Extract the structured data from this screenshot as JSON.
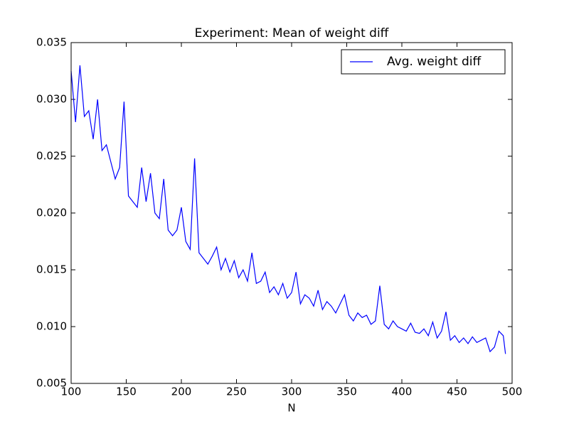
{
  "chart_data": {
    "type": "line",
    "title": "Experiment: Mean of weight diff",
    "x_label": "N",
    "xlim": [
      100,
      500
    ],
    "xticks": [
      100,
      150,
      200,
      250,
      300,
      350,
      400,
      450,
      500
    ],
    "ylim": [
      0.005,
      0.035
    ],
    "yticks": [
      0.005,
      {
        "value": 0.01,
        "label": "0.010"
      },
      0.015,
      {
        "value": 0.02,
        "label": "0.020"
      },
      0.025,
      {
        "value": 0.03,
        "label": "0.030"
      },
      0.035
    ],
    "legend": "upper right",
    "series": [
      {
        "name": "Avg. weight diff",
        "color": "#0000ff",
        "x": [
          100,
          104,
          108,
          112,
          116,
          120,
          124,
          128,
          132,
          136,
          140,
          144,
          148,
          152,
          156,
          160,
          164,
          168,
          172,
          176,
          180,
          184,
          188,
          192,
          196,
          200,
          204,
          208,
          212,
          216,
          220,
          224,
          228,
          232,
          236,
          240,
          244,
          248,
          252,
          256,
          260,
          264,
          268,
          272,
          276,
          280,
          284,
          288,
          292,
          296,
          300,
          304,
          308,
          312,
          316,
          320,
          324,
          328,
          332,
          336,
          340,
          344,
          348,
          352,
          356,
          360,
          364,
          368,
          372,
          376,
          380,
          384,
          388,
          392,
          396,
          400,
          404,
          408,
          412,
          416,
          420,
          424,
          428,
          432,
          436,
          440,
          444,
          448,
          452,
          456,
          460,
          464,
          468,
          472,
          476,
          480,
          484,
          488,
          492,
          494
        ],
        "values": [
          0.0325,
          0.028,
          0.033,
          0.0285,
          0.029,
          0.0265,
          0.03,
          0.0255,
          0.026,
          0.0245,
          0.023,
          0.024,
          0.0298,
          0.0215,
          0.021,
          0.0205,
          0.024,
          0.021,
          0.0235,
          0.02,
          0.0195,
          0.023,
          0.0185,
          0.018,
          0.0185,
          0.0205,
          0.0175,
          0.0168,
          0.0248,
          0.0165,
          0.016,
          0.0155,
          0.0162,
          0.017,
          0.015,
          0.016,
          0.0148,
          0.0158,
          0.0143,
          0.015,
          0.014,
          0.0165,
          0.0138,
          0.014,
          0.0148,
          0.013,
          0.0135,
          0.0128,
          0.0138,
          0.0125,
          0.013,
          0.0148,
          0.012,
          0.0128,
          0.0125,
          0.0118,
          0.0132,
          0.0115,
          0.0122,
          0.0118,
          0.0112,
          0.012,
          0.0128,
          0.011,
          0.0105,
          0.0112,
          0.0108,
          0.011,
          0.0102,
          0.0105,
          0.0136,
          0.0102,
          0.0098,
          0.0105,
          0.01,
          0.0098,
          0.0096,
          0.0103,
          0.0095,
          0.0094,
          0.0098,
          0.0092,
          0.0104,
          0.009,
          0.0096,
          0.0113,
          0.0088,
          0.0092,
          0.0086,
          0.009,
          0.0085,
          0.0091,
          0.0086,
          0.0088,
          0.009,
          0.0078,
          0.0082,
          0.0096,
          0.0092,
          0.0076
        ]
      }
    ]
  }
}
